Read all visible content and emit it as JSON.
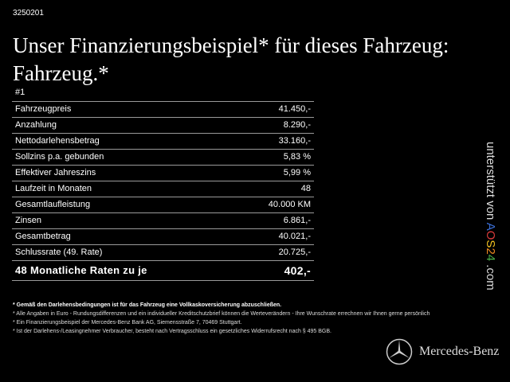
{
  "header": {
    "id": "3250201",
    "title": "Unser Finanzierungsbeispiel* für dieses Fahrzeug: Fahrzeug.*",
    "number": "#1"
  },
  "table": {
    "rows": [
      {
        "label": "Fahrzeugpreis",
        "value": "41.450,-"
      },
      {
        "label": "Anzahlung",
        "value": "8.290,-"
      },
      {
        "label": "Nettodarlehensbetrag",
        "value": "33.160,-"
      },
      {
        "label": "Sollzins p.a. gebunden",
        "value": "5,83 %"
      },
      {
        "label": "Effektiver Jahreszins",
        "value": "5,99 %"
      },
      {
        "label": "Laufzeit in Monaten",
        "value": "48"
      },
      {
        "label": "Gesamtlaufleistung",
        "value": "40.000 KM"
      },
      {
        "label": "Zinsen",
        "value": "6.861,-"
      },
      {
        "label": "Gesamtbetrag",
        "value": "40.021,-"
      },
      {
        "label": "Schlussrate (49. Rate)",
        "value": "20.725,-"
      }
    ],
    "total": {
      "label": "48 Monatliche Raten zu je",
      "value": "402,-"
    }
  },
  "side": {
    "prefix": "unterstützt von ",
    "brand_a": "A",
    "brand_o": "O",
    "brand_s": "S",
    "brand_2": "2",
    "brand_4": "4",
    "suffix": " .com",
    "colors": {
      "a": "#3b6fd8",
      "o": "#d93a3a",
      "s": "#f0c020",
      "two": "#f08a20",
      "four": "#4ab04a"
    }
  },
  "notes": [
    "* Gemäß den Darlehensbedingungen ist für das Fahrzeug eine Vollkaskoversicherung abzuschließen.",
    "* Alle Angaben in Euro - Rundungsdifferenzen und ein individueller Kreditschutzbrief können die Werteverändern - Ihre Wunschrate errechnen wir Ihnen gerne persönlich",
    "* Ein Finanzierungsbeispiel der Mercedes-Benz Bank AG, Siemensstraße 7, 70469 Stuttgart.",
    "* Ist der Darlehens-/Leasingnehmer Verbraucher, besteht nach Vertragsschluss ein gesetzliches Widerrufsrecht nach § 495 BGB."
  ],
  "logo": {
    "text": "Mercedes-Benz",
    "icon": "mercedes-star-icon"
  }
}
